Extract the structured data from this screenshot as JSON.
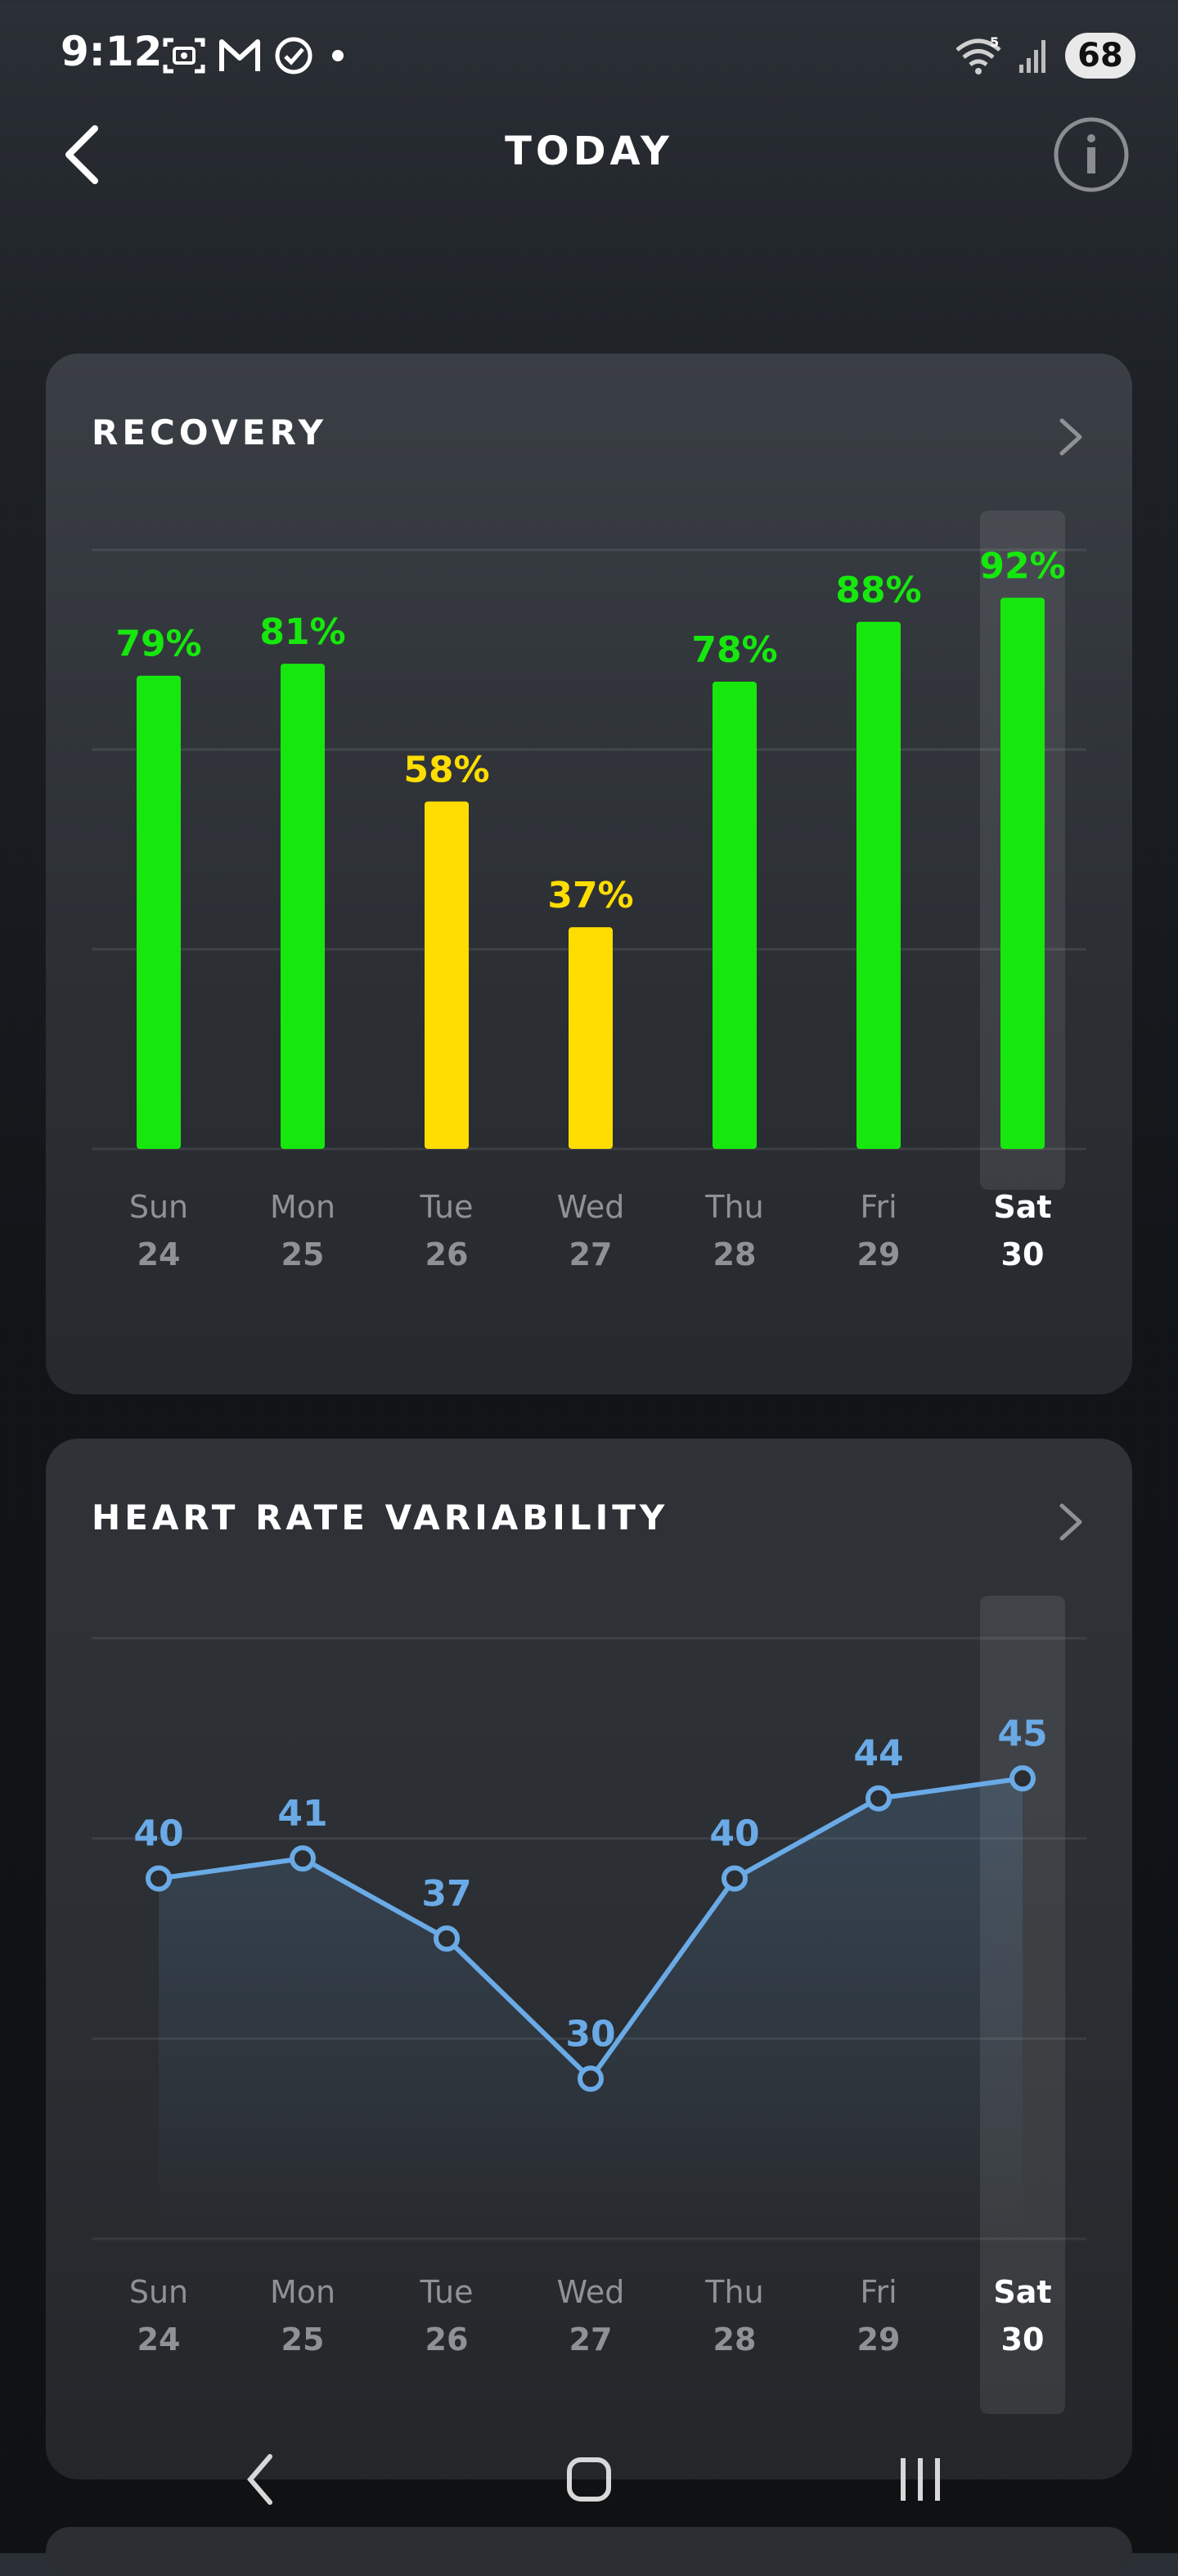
{
  "status_bar": {
    "time": "9:12",
    "left_icons": [
      "screenshot-icon",
      "gmail-icon",
      "check-circle-icon",
      "dot-icon"
    ],
    "right_icons": [
      "wifi-icon",
      "signal-icon"
    ],
    "wifi_band": "5",
    "battery": "68"
  },
  "header": {
    "title": "TODAY",
    "back_icon": "chevron-left-icon",
    "info_icon": "info-icon"
  },
  "recovery": {
    "title": "RECOVERY",
    "chart_data": {
      "type": "bar",
      "title": "RECOVERY",
      "categories": [
        {
          "day": "Sun",
          "date": "24"
        },
        {
          "day": "Mon",
          "date": "25"
        },
        {
          "day": "Tue",
          "date": "26"
        },
        {
          "day": "Wed",
          "date": "27"
        },
        {
          "day": "Thu",
          "date": "28"
        },
        {
          "day": "Fri",
          "date": "29"
        },
        {
          "day": "Sat",
          "date": "30"
        }
      ],
      "values": [
        79,
        81,
        58,
        37,
        78,
        88,
        92
      ],
      "value_labels": [
        "79%",
        "81%",
        "58%",
        "37%",
        "78%",
        "88%",
        "92%"
      ],
      "ylim": [
        0,
        100
      ],
      "grid": true,
      "selected_index": 6,
      "colors": {
        "green": "#16e80d",
        "yellow": "#ffdd00"
      },
      "bar_colors": [
        "green",
        "green",
        "yellow",
        "yellow",
        "green",
        "green",
        "green"
      ]
    }
  },
  "hrv": {
    "title": "HEART RATE VARIABILITY",
    "chart_data": {
      "type": "line",
      "title": "HEART RATE VARIABILITY",
      "categories": [
        {
          "day": "Sun",
          "date": "24"
        },
        {
          "day": "Mon",
          "date": "25"
        },
        {
          "day": "Tue",
          "date": "26"
        },
        {
          "day": "Wed",
          "date": "27"
        },
        {
          "day": "Thu",
          "date": "28"
        },
        {
          "day": "Fri",
          "date": "29"
        },
        {
          "day": "Sat",
          "date": "30"
        }
      ],
      "values": [
        40,
        41,
        37,
        30,
        40,
        44,
        45
      ],
      "value_labels": [
        "40",
        "41",
        "37",
        "30",
        "40",
        "44",
        "45"
      ],
      "ylim": [
        22,
        52
      ],
      "grid": true,
      "selected_index": 6,
      "colors": {
        "line": "#6aaae6"
      }
    }
  },
  "nav_bar": {
    "back_icon": "nav-back-icon",
    "home_icon": "nav-home-icon",
    "recents_icon": "nav-recents-icon"
  }
}
